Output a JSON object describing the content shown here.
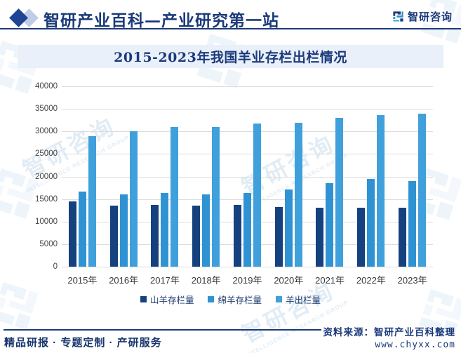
{
  "header": {
    "brand_title": "智研产业百科—产业研究第一站",
    "logo_text": "智研咨询"
  },
  "chart_title": "2015-2023年我国羊业存栏出栏情况",
  "chart_data": {
    "type": "bar",
    "title": "2015-2023年我国羊业存栏出栏情况",
    "categories": [
      "2015年",
      "2016年",
      "2017年",
      "2018年",
      "2019年",
      "2020年",
      "2021年",
      "2022年",
      "2023年"
    ],
    "series": [
      {
        "name": "山羊存栏量",
        "color": "#15417e",
        "values": [
          14500,
          13500,
          13700,
          13500,
          13700,
          13200,
          13100,
          13100,
          13100
        ]
      },
      {
        "name": "绵羊存栏量",
        "color": "#2f93d3",
        "values": [
          16600,
          16100,
          16300,
          16000,
          16300,
          17200,
          18600,
          19400,
          19000
        ]
      },
      {
        "name": "羊出栏量",
        "color": "#3fa0dc",
        "values": [
          28900,
          30100,
          30900,
          31000,
          31700,
          31900,
          33000,
          33600,
          33900
        ]
      }
    ],
    "ylim": [
      0,
      40000
    ],
    "y_ticks": [
      40000,
      35000,
      30000,
      25000,
      20000,
      15000,
      10000,
      5000,
      0
    ],
    "grid": true,
    "legend_position": "bottom"
  },
  "footer": {
    "left_text": "精品研报 · 专题定制 · 产研服务",
    "source_label": "资料来源：智研产业百科整理",
    "website": "www.chyxx.com"
  },
  "watermark": {
    "text": "智研咨询",
    "subtext": "INTELLIGENCE RESEARCH GROUP"
  },
  "colors": {
    "brand_navy": "#1b3a7a",
    "rule_navy": "#1e3b76",
    "banner_bg": "#e9f0fa",
    "gridline": "#dcdcdc"
  }
}
